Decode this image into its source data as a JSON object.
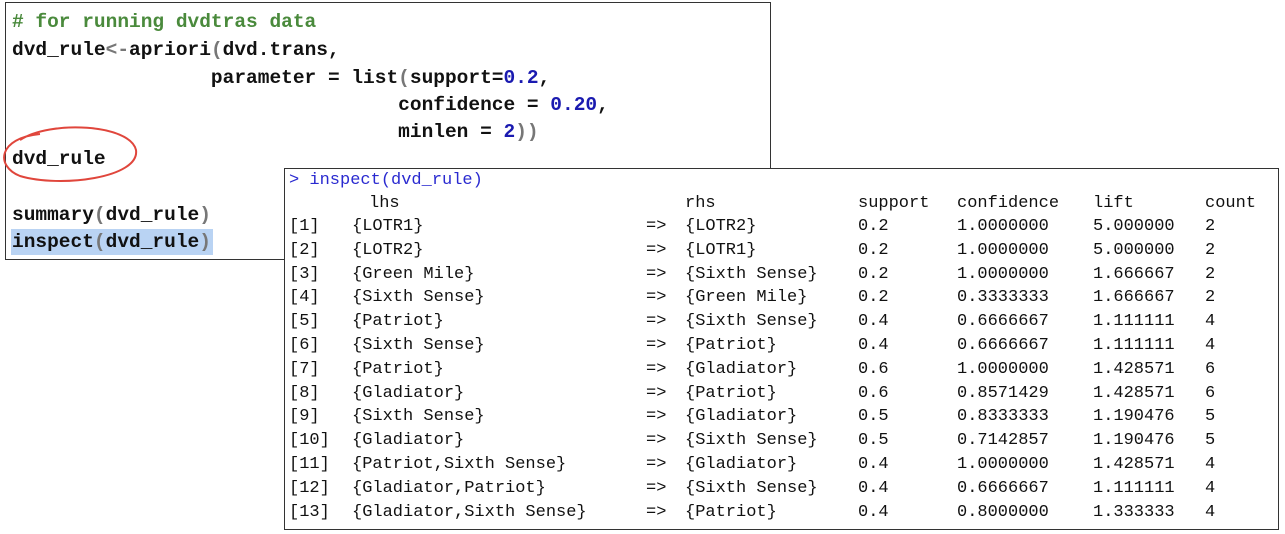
{
  "code": {
    "lines": [
      [
        {
          "text": "# for running dvdtras data",
          "color": "#4a8a3c"
        }
      ],
      [
        {
          "text": "dvd_rule",
          "color": "#111111"
        },
        {
          "text": "<-",
          "color": "#777777"
        },
        {
          "text": "apriori",
          "color": "#111111"
        },
        {
          "text": "(",
          "color": "#777777"
        },
        {
          "text": "dvd.trans,",
          "color": "#111111"
        }
      ],
      [
        {
          "text": "                 parameter = list",
          "color": "#111111"
        },
        {
          "text": "(",
          "color": "#777777"
        },
        {
          "text": "support=",
          "color": "#111111"
        },
        {
          "text": "0.2",
          "color": "#1a1ab0"
        },
        {
          "text": ",",
          "color": "#111111"
        }
      ],
      [
        {
          "text": "                                 confidence = ",
          "color": "#111111"
        },
        {
          "text": "0.20",
          "color": "#1a1ab0"
        },
        {
          "text": ",",
          "color": "#111111"
        }
      ],
      [
        {
          "text": "                                 minlen = ",
          "color": "#111111"
        },
        {
          "text": "2",
          "color": "#1a1ab0"
        },
        {
          "text": "))",
          "color": "#777777"
        }
      ],
      [
        {
          "text": "dvd_rule",
          "color": "#111111"
        }
      ],
      [],
      [
        {
          "text": "summary",
          "color": "#111111"
        },
        {
          "text": "(",
          "color": "#777777"
        },
        {
          "text": "dvd_rule",
          "color": "#111111"
        },
        {
          "text": ")",
          "color": "#777777"
        }
      ],
      [
        {
          "text": "inspect",
          "color": "#111111"
        },
        {
          "text": "(",
          "color": "#777777"
        },
        {
          "text": "dvd_rule",
          "color": "#111111"
        },
        {
          "text": ")",
          "color": "#777777"
        }
      ]
    ]
  },
  "console": {
    "prompt": "> inspect(dvd_rule)",
    "header": [
      "lhs",
      "rhs",
      "support",
      "confidence",
      "lift",
      "count"
    ],
    "rows": [
      [
        "[1]",
        "{LOTR1}",
        "=>",
        "{LOTR2}",
        "0.2",
        "1.0000000",
        "5.000000",
        "2"
      ],
      [
        "[2]",
        "{LOTR2}",
        "=>",
        "{LOTR1}",
        "0.2",
        "1.0000000",
        "5.000000",
        "2"
      ],
      [
        "[3]",
        "{Green Mile}",
        "=>",
        "{Sixth Sense}",
        "0.2",
        "1.0000000",
        "1.666667",
        "2"
      ],
      [
        "[4]",
        "{Sixth Sense}",
        "=>",
        "{Green Mile}",
        "0.2",
        "0.3333333",
        "1.666667",
        "2"
      ],
      [
        "[5]",
        "{Patriot}",
        "=>",
        "{Sixth Sense}",
        "0.4",
        "0.6666667",
        "1.111111",
        "4"
      ],
      [
        "[6]",
        "{Sixth Sense}",
        "=>",
        "{Patriot}",
        "0.4",
        "0.6666667",
        "1.111111",
        "4"
      ],
      [
        "[7]",
        "{Patriot}",
        "=>",
        "{Gladiator}",
        "0.6",
        "1.0000000",
        "1.428571",
        "6"
      ],
      [
        "[8]",
        "{Gladiator}",
        "=>",
        "{Patriot}",
        "0.6",
        "0.8571429",
        "1.428571",
        "6"
      ],
      [
        "[9]",
        "{Sixth Sense}",
        "=>",
        "{Gladiator}",
        "0.5",
        "0.8333333",
        "1.190476",
        "5"
      ],
      [
        "[10]",
        "{Gladiator}",
        "=>",
        "{Sixth Sense}",
        "0.5",
        "0.7142857",
        "1.190476",
        "5"
      ],
      [
        "[11]",
        "{Patriot,Sixth Sense}",
        "=>",
        "{Gladiator}",
        "0.4",
        "1.0000000",
        "1.428571",
        "4"
      ],
      [
        "[12]",
        "{Gladiator,Patriot}",
        "=>",
        "{Sixth Sense}",
        "0.4",
        "0.6666667",
        "1.111111",
        "4"
      ],
      [
        "[13]",
        "{Gladiator,Sixth Sense}",
        "=>",
        "{Patriot}",
        "0.4",
        "0.8000000",
        "1.333333",
        "4"
      ]
    ]
  }
}
